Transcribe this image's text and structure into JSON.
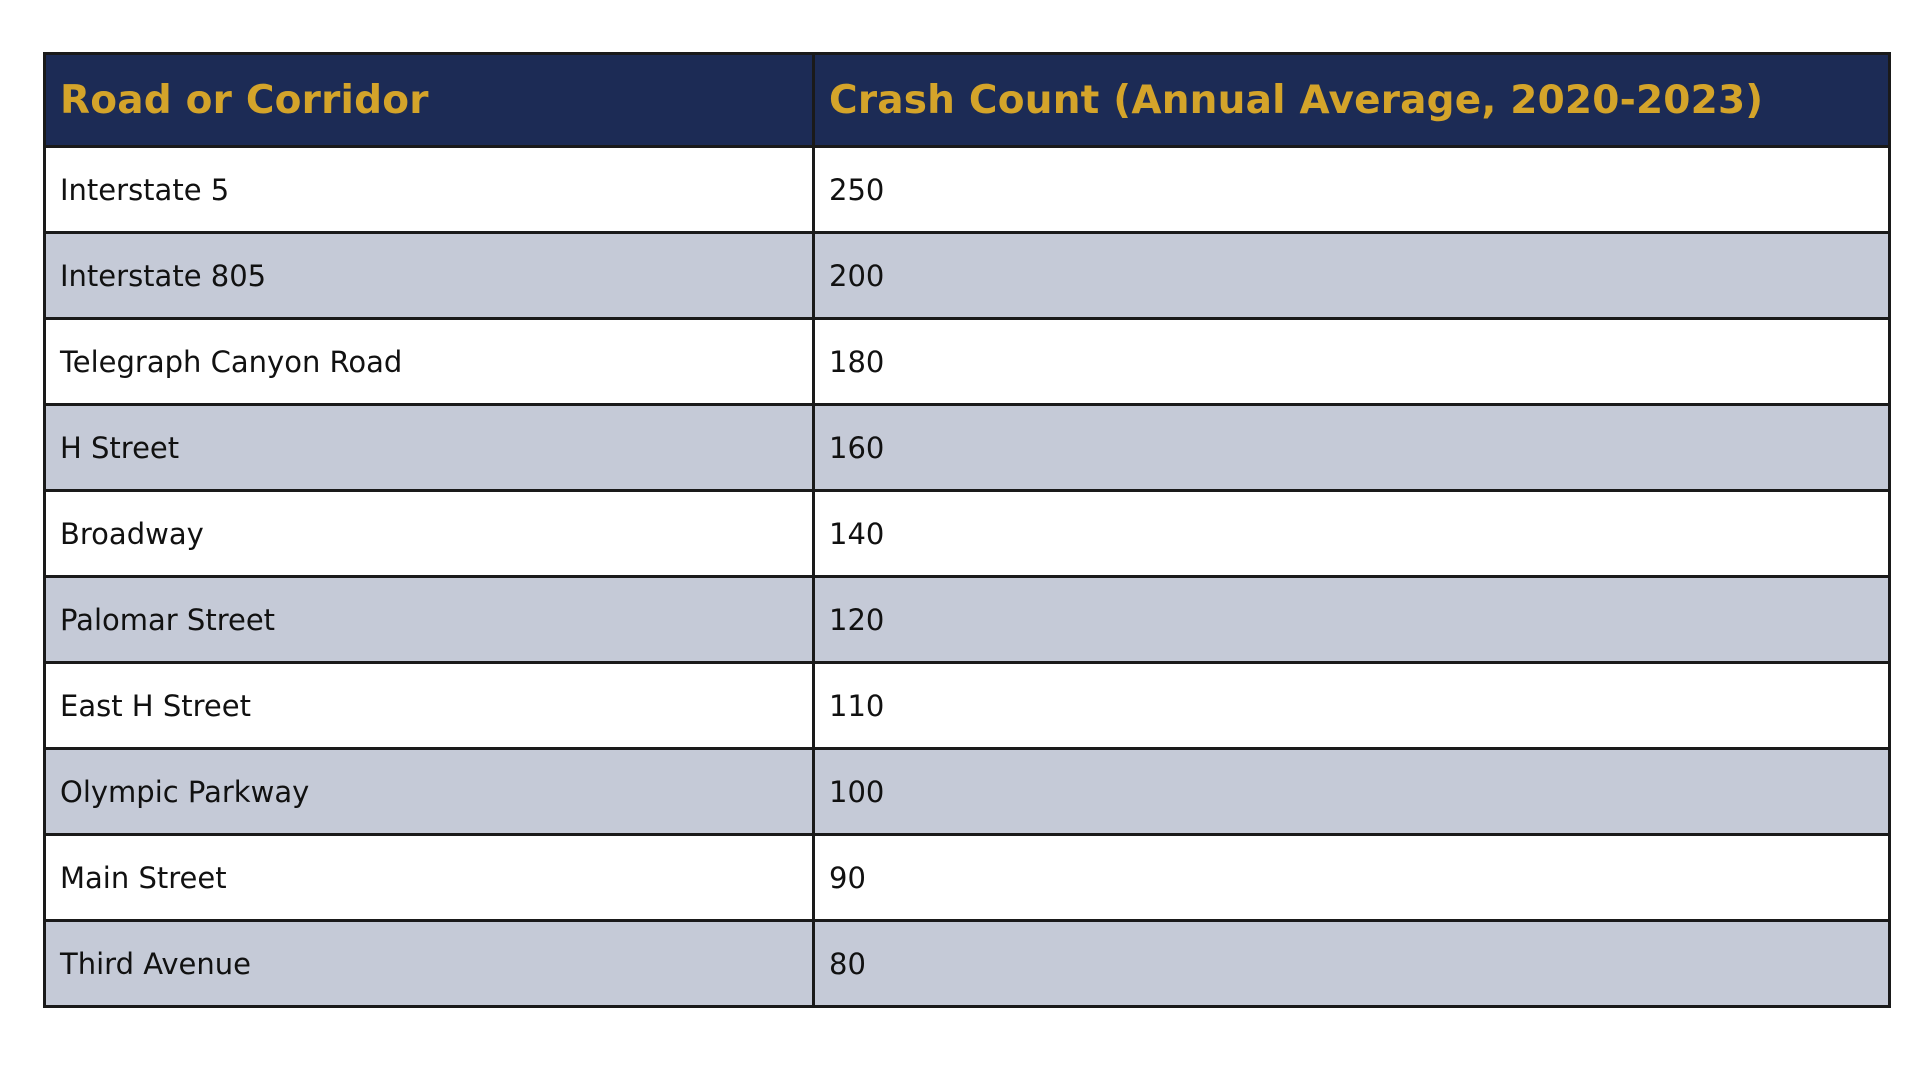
{
  "table": {
    "headers": [
      "Road or Corridor",
      "Crash Count (Annual Average, 2020-2023)"
    ],
    "rows": [
      [
        "Interstate 5",
        "250"
      ],
      [
        "Interstate 805",
        "200"
      ],
      [
        "Telegraph Canyon Road",
        "180"
      ],
      [
        "H Street",
        "160"
      ],
      [
        "Broadway",
        "140"
      ],
      [
        "Palomar Street",
        "120"
      ],
      [
        "East H Street",
        "110"
      ],
      [
        "Olympic Parkway",
        "100"
      ],
      [
        "Main Street",
        "90"
      ],
      [
        "Third Avenue",
        "80"
      ]
    ]
  },
  "colors": {
    "header_bg": "#1c2b55",
    "header_text": "#d4a42a",
    "stripe_bg": "#c5cad7",
    "border": "#1a1a1a"
  }
}
